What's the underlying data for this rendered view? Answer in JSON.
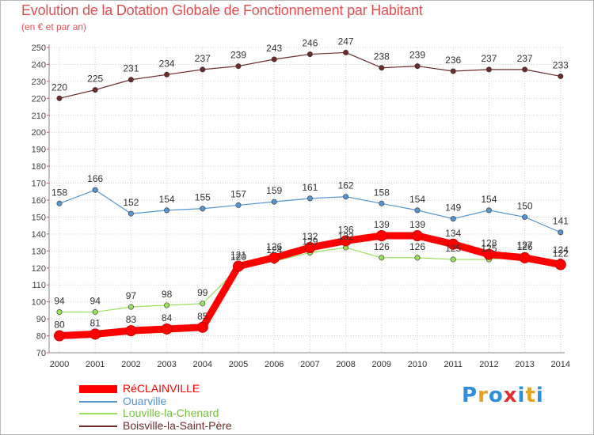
{
  "chart_data": {
    "type": "line",
    "title": "Evolution de la Dotation Globale de Fonctionnement par Habitant",
    "subtitle": "(en € et par an)",
    "x": [
      "2000",
      "2001",
      "2002",
      "2003",
      "2004",
      "2005",
      "2006",
      "2007",
      "2008",
      "2009",
      "2010",
      "2011",
      "2012",
      "2013",
      "2014"
    ],
    "ylim": [
      70,
      250
    ],
    "yticks": [
      70,
      80,
      90,
      100,
      110,
      120,
      130,
      140,
      150,
      160,
      170,
      180,
      190,
      200,
      210,
      220,
      230,
      240,
      250
    ],
    "grid": true,
    "legend_position": "bottom-left",
    "series": [
      {
        "name": "RéCLAINVILLE",
        "color": "#ff0000",
        "values": [
          80,
          81,
          83,
          84,
          85,
          121,
          126,
          132,
          136,
          139,
          139,
          134,
          128,
          126,
          122
        ]
      },
      {
        "name": "Ouarville",
        "color": "#5596d2",
        "values": [
          158,
          166,
          152,
          154,
          155,
          157,
          159,
          161,
          162,
          158,
          154,
          149,
          154,
          150,
          141
        ]
      },
      {
        "name": "Louville-la-Chenard",
        "color": "#99e05c",
        "values": [
          94,
          94,
          97,
          98,
          99,
          120,
          124,
          129,
          132,
          126,
          126,
          125,
          125,
          127,
          124
        ]
      },
      {
        "name": "Boisville-la-Saint-Père",
        "color": "#6e2a2a",
        "values": [
          220,
          225,
          231,
          234,
          237,
          239,
          243,
          246,
          247,
          238,
          239,
          236,
          237,
          237,
          233
        ]
      }
    ]
  },
  "logo": {
    "letters": [
      "P",
      "r",
      "o",
      "x",
      "i",
      "t",
      "i"
    ],
    "colors": [
      "#2f8fd8",
      "#e8a020",
      "#2f8fd8",
      "#e03030",
      "#2f8fd8",
      "#e8a020",
      "#2f8fd8"
    ]
  }
}
